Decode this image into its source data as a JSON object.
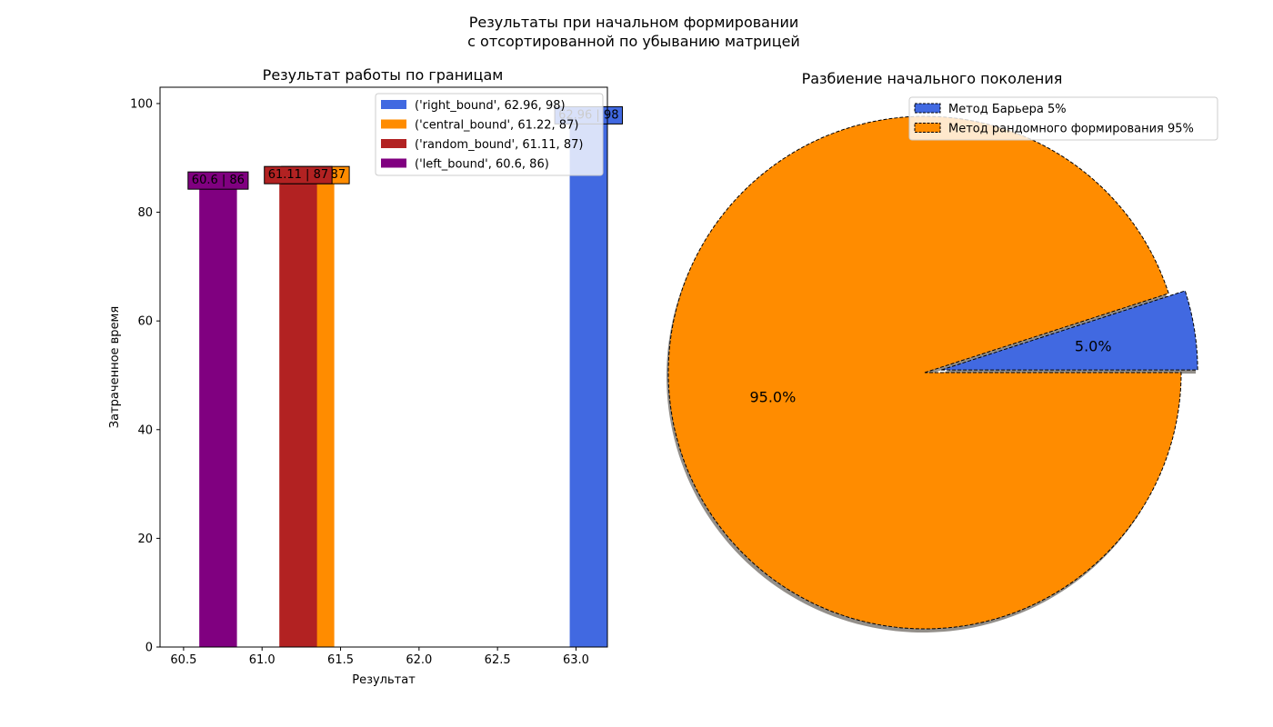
{
  "figure": {
    "suptitle_line1": "Результаты при начальном формировании",
    "suptitle_line2": "с отсортированной по убыванию матрицей"
  },
  "chart_data": [
    {
      "type": "bar",
      "title": "Результат работы по границам",
      "xlabel": "Результат",
      "ylabel": "Затраченное время",
      "xlim": [
        60.35,
        63.2
      ],
      "ylim": [
        0,
        103
      ],
      "xticks": [
        "60.5",
        "61.0",
        "61.5",
        "62.0",
        "62.5",
        "63.0"
      ],
      "yticks": [
        "0",
        "20",
        "40",
        "60",
        "80",
        "100"
      ],
      "bar_width": 0.24,
      "legend_position": "upper right",
      "series": [
        {
          "name": "('right_bound', 62.96, 98)",
          "x": 62.96,
          "value": 98,
          "color": "#4169E1",
          "label": "62.96 | 98"
        },
        {
          "name": "('central_bound', 61.22, 87)",
          "x": 61.22,
          "value": 87,
          "color": "#FF8C00",
          "label": "61.22 | 87"
        },
        {
          "name": "('random_bound', 61.11, 87)",
          "x": 61.11,
          "value": 87,
          "color": "#B22222",
          "label": "61.11 | 87"
        },
        {
          "name": "('left_bound', 60.6, 86)",
          "x": 60.6,
          "value": 86,
          "color": "#800080",
          "label": "60.6 | 86"
        }
      ]
    },
    {
      "type": "pie",
      "title": "Разбиение начального поколения",
      "legend_position": "upper right",
      "slices": [
        {
          "name": "Метод Барьера 5%",
          "value": 5,
          "pct_label": "5.0%",
          "color": "#4169E1",
          "explode": true
        },
        {
          "name": "Метод рандомного формирования 95%",
          "value": 95,
          "pct_label": "95.0%",
          "color": "#FF8C00",
          "explode": false
        }
      ],
      "shadow": true,
      "edge_style": "dashed"
    }
  ]
}
